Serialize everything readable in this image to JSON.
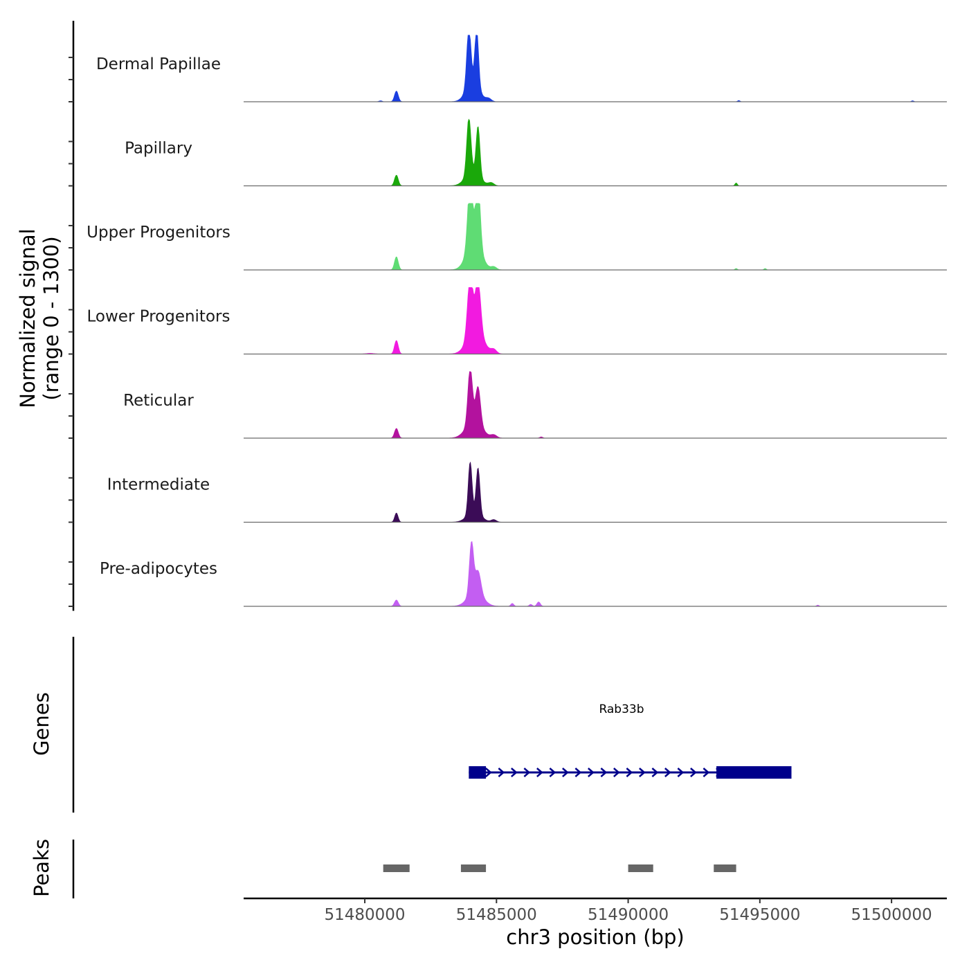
{
  "chart_data": {
    "type": "area",
    "title": "",
    "ylabel_line1": "Normalized signal",
    "ylabel_line2": "(range 0 - 1300)",
    "ylim": [
      0,
      1300
    ],
    "xlabel": "chr3 position (bp)",
    "xlim": [
      51475400,
      51502100
    ],
    "xticks": [
      51480000,
      51485000,
      51490000,
      51495000,
      51500000
    ],
    "xtick_labels": [
      "51480000",
      "51485000",
      "51490000",
      "51495000",
      "51500000"
    ],
    "tracks": [
      {
        "name": "Dermal Papillae",
        "color": "#1a3ee0",
        "peaks": [
          {
            "pos": 51481200,
            "height": 220,
            "width": 100
          },
          {
            "pos": 51483950,
            "height": 1200,
            "width": 110
          },
          {
            "pos": 51484250,
            "height": 1150,
            "width": 100
          },
          {
            "pos": 51484100,
            "height": 400,
            "width": 350
          },
          {
            "pos": 51484700,
            "height": 60,
            "width": 150
          },
          {
            "pos": 51480600,
            "height": 20,
            "width": 80
          },
          {
            "pos": 51494200,
            "height": 25,
            "width": 60
          },
          {
            "pos": 51500800,
            "height": 20,
            "width": 60
          }
        ]
      },
      {
        "name": "Papillary",
        "color": "#1aa80a",
        "peaks": [
          {
            "pos": 51481200,
            "height": 220,
            "width": 100
          },
          {
            "pos": 51483950,
            "height": 1150,
            "width": 110
          },
          {
            "pos": 51484300,
            "height": 1000,
            "width": 100
          },
          {
            "pos": 51484100,
            "height": 300,
            "width": 380
          },
          {
            "pos": 51484800,
            "height": 60,
            "width": 150
          },
          {
            "pos": 51494100,
            "height": 60,
            "width": 60
          }
        ]
      },
      {
        "name": "Upper Progenitors",
        "color": "#5fdc74",
        "peaks": [
          {
            "pos": 51481200,
            "height": 270,
            "width": 100
          },
          {
            "pos": 51484000,
            "height": 1350,
            "width": 130
          },
          {
            "pos": 51484300,
            "height": 1300,
            "width": 120
          },
          {
            "pos": 51484150,
            "height": 600,
            "width": 380
          },
          {
            "pos": 51484900,
            "height": 60,
            "width": 150
          },
          {
            "pos": 51494100,
            "height": 30,
            "width": 60
          },
          {
            "pos": 51495200,
            "height": 30,
            "width": 60
          }
        ]
      },
      {
        "name": "Lower Progenitors",
        "color": "#f21ae0",
        "peaks": [
          {
            "pos": 51481200,
            "height": 280,
            "width": 100
          },
          {
            "pos": 51484000,
            "height": 1220,
            "width": 140
          },
          {
            "pos": 51484300,
            "height": 1050,
            "width": 140
          },
          {
            "pos": 51484200,
            "height": 500,
            "width": 420
          },
          {
            "pos": 51484900,
            "height": 80,
            "width": 150
          },
          {
            "pos": 51480200,
            "height": 15,
            "width": 200
          }
        ]
      },
      {
        "name": "Reticular",
        "color": "#b3129e",
        "peaks": [
          {
            "pos": 51481200,
            "height": 200,
            "width": 100
          },
          {
            "pos": 51484000,
            "height": 1130,
            "width": 120
          },
          {
            "pos": 51484300,
            "height": 750,
            "width": 130
          },
          {
            "pos": 51484150,
            "height": 350,
            "width": 420
          },
          {
            "pos": 51484900,
            "height": 60,
            "width": 160
          },
          {
            "pos": 51486700,
            "height": 25,
            "width": 80
          }
        ]
      },
      {
        "name": "Intermediate",
        "color": "#3b0c57",
        "peaks": [
          {
            "pos": 51481200,
            "height": 190,
            "width": 90
          },
          {
            "pos": 51484000,
            "height": 1070,
            "width": 100
          },
          {
            "pos": 51484300,
            "height": 950,
            "width": 100
          },
          {
            "pos": 51484150,
            "height": 200,
            "width": 380
          },
          {
            "pos": 51484900,
            "height": 50,
            "width": 140
          }
        ]
      },
      {
        "name": "Pre-adipocytes",
        "color": "#c35ef2",
        "peaks": [
          {
            "pos": 51481200,
            "height": 130,
            "width": 100
          },
          {
            "pos": 51484050,
            "height": 1050,
            "width": 110
          },
          {
            "pos": 51484300,
            "height": 450,
            "width": 150
          },
          {
            "pos": 51484200,
            "height": 300,
            "width": 400
          },
          {
            "pos": 51485600,
            "height": 60,
            "width": 80
          },
          {
            "pos": 51486600,
            "height": 90,
            "width": 90
          },
          {
            "pos": 51486300,
            "height": 40,
            "width": 80
          },
          {
            "pos": 51497200,
            "height": 25,
            "width": 60
          }
        ]
      }
    ],
    "genes": {
      "label": "Genes",
      "gene_name": "Rab33b",
      "color": "#00008b",
      "strand": "+",
      "start": 51483950,
      "end": 51496200,
      "exons": [
        {
          "start": 51483950,
          "end": 51484600
        },
        {
          "start": 51493350,
          "end": 51496200
        }
      ]
    },
    "peaks_track": {
      "label": "Peaks",
      "color": "#666666",
      "regions": [
        {
          "start": 51480700,
          "end": 51481700
        },
        {
          "start": 51483650,
          "end": 51484600
        },
        {
          "start": 51490000,
          "end": 51490950
        },
        {
          "start": 51493250,
          "end": 51494100
        }
      ]
    }
  }
}
